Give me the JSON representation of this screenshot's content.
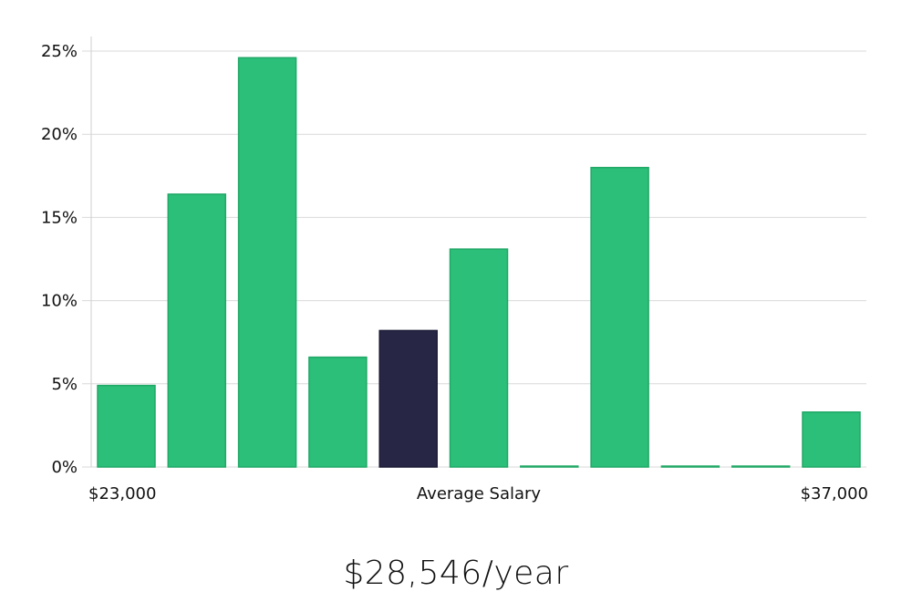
{
  "chart_data": {
    "type": "bar",
    "title": "",
    "xlabel": "Average Salary",
    "ylabel": "",
    "x_range_labels": [
      "$23,000",
      "$37,000"
    ],
    "ylim": [
      0,
      26
    ],
    "yticks": [
      0,
      5,
      10,
      15,
      20,
      25
    ],
    "ytick_labels": [
      "0%",
      "5%",
      "10%",
      "15%",
      "20%",
      "25%"
    ],
    "grid": true,
    "values": [
      4.9,
      16.4,
      24.6,
      6.6,
      8.2,
      13.1,
      0.05,
      18.0,
      0.05,
      0.05,
      3.3
    ],
    "highlight_index": 4,
    "colors": {
      "bar": "#2bbf7a",
      "bar_edge": "#20a866",
      "highlight": "#272645",
      "grid": "#d9d9d9",
      "axis": "#cfcfcf"
    }
  },
  "headline": "$28,546/year"
}
